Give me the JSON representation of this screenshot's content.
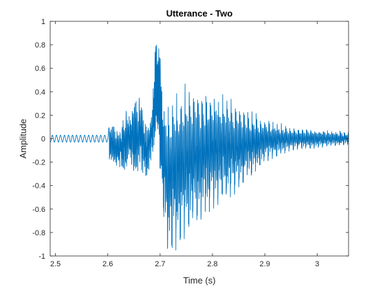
{
  "chart_data": {
    "type": "line",
    "title": "Utterance - Two",
    "xlabel": "Time (s)",
    "ylabel": "Amplitude",
    "xlim": [
      2.49,
      3.06
    ],
    "ylim": [
      -1,
      1
    ],
    "xticks": [
      2.5,
      2.6,
      2.7,
      2.8,
      2.9,
      3
    ],
    "xtick_labels": [
      "2.5",
      "2.6",
      "2.7",
      "2.8",
      "2.9",
      "3"
    ],
    "yticks": [
      -1,
      -0.8,
      -0.6,
      -0.4,
      -0.2,
      0,
      0.2,
      0.4,
      0.6,
      0.8,
      1
    ],
    "ytick_labels": [
      "-1",
      "-0.8",
      "-0.6",
      "-0.4",
      "-0.2",
      "0",
      "0.2",
      "0.4",
      "0.6",
      "0.8",
      "1"
    ],
    "grid": false,
    "box": true,
    "line_color": "#0072BD",
    "envelope": {
      "x": [
        2.49,
        2.6,
        2.604,
        2.62,
        2.64,
        2.66,
        2.675,
        2.685,
        2.69,
        2.695,
        2.7,
        2.705,
        2.71,
        2.72,
        2.73,
        2.75,
        2.77,
        2.8,
        2.85,
        2.9,
        2.95,
        3.0,
        3.06
      ],
      "upper": [
        0.03,
        0.03,
        0.15,
        0.1,
        0.28,
        0.36,
        0.1,
        0.25,
        0.8,
        0.91,
        0.84,
        0.3,
        0.35,
        0.38,
        0.44,
        0.47,
        0.45,
        0.44,
        0.3,
        0.18,
        0.1,
        0.08,
        0.06
      ],
      "lower": [
        -0.03,
        -0.03,
        -0.25,
        -0.28,
        -0.3,
        -0.3,
        -0.35,
        -0.15,
        -0.05,
        0.0,
        -0.3,
        -0.6,
        -0.9,
        -0.99,
        -0.95,
        -0.83,
        -0.72,
        -0.6,
        -0.45,
        -0.2,
        -0.1,
        -0.08,
        -0.05
      ]
    }
  }
}
